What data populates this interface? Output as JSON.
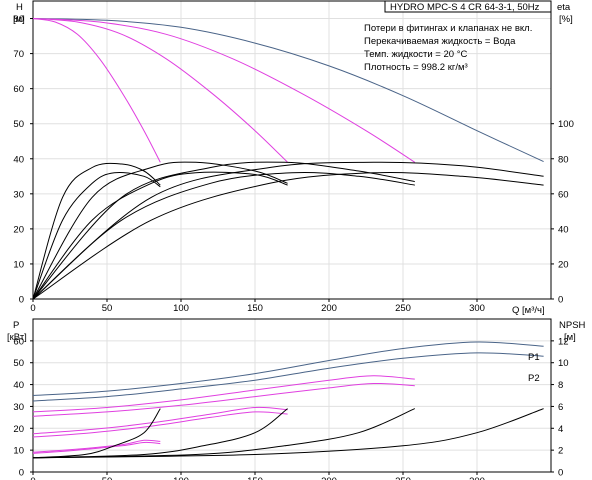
{
  "chart_data": [
    {
      "type": "line",
      "title": "HYDRO MPC-S 4 CR 64-3-1, 50Hz",
      "notes": [
        "Потери в фитингах и клапанах не вкл.",
        "Перекачиваемая жидкость = Вода",
        "Темп. жидкости = 20 °C",
        "Плотность = 998.2 кг/м³"
      ],
      "xlabel": "Q [м³/ч]",
      "xlim": [
        0,
        350
      ],
      "xticks": [
        0,
        50,
        100,
        150,
        200,
        250,
        300
      ],
      "ylabel_left": [
        "H",
        "[м]"
      ],
      "ylim_left": [
        0,
        85
      ],
      "yticks_left": [
        0,
        10,
        20,
        30,
        40,
        50,
        60,
        70,
        80
      ],
      "ylabel_right": [
        "eta",
        "[%]"
      ],
      "ylim_right": [
        0,
        170
      ],
      "yticks_right": [
        0,
        20,
        40,
        60,
        80,
        100
      ],
      "grid": true,
      "colors": {
        "head_max": "#4a6488",
        "head_reduced": "#e040e0",
        "efficiency": "#000000"
      },
      "series": [
        {
          "kind": "head",
          "color": "#4a6488",
          "x": [
            0,
            50,
            100,
            150,
            200,
            250,
            300,
            345
          ],
          "y": [
            80,
            79.5,
            77.5,
            73,
            66.5,
            58,
            48,
            39.2
          ]
        },
        {
          "kind": "head",
          "color": "#e040e0",
          "x": [
            0,
            45,
            90,
            135,
            180,
            225,
            258
          ],
          "y": [
            80,
            79,
            75.5,
            68.5,
            59,
            48,
            39
          ]
        },
        {
          "kind": "head",
          "color": "#e040e0",
          "x": [
            0,
            30,
            60,
            90,
            120,
            150,
            172
          ],
          "y": [
            80,
            79,
            75.5,
            68.5,
            59,
            48,
            39
          ]
        },
        {
          "kind": "head",
          "color": "#e040e0",
          "x": [
            0,
            15,
            30,
            45,
            60,
            75,
            86
          ],
          "y": [
            80,
            79,
            75.5,
            68.5,
            59,
            48,
            39
          ]
        },
        {
          "kind": "eta",
          "color": "#000000",
          "x": [
            0,
            20,
            40,
            60,
            75,
            86
          ],
          "y": [
            0,
            58,
            75,
            77,
            73,
            65
          ]
        },
        {
          "kind": "eta",
          "color": "#000000",
          "x": [
            0,
            20,
            40,
            55,
            75,
            86
          ],
          "y": [
            0,
            45,
            66,
            72,
            70,
            64
          ]
        },
        {
          "kind": "eta",
          "color": "#000000",
          "x": [
            0,
            40,
            80,
            110,
            150,
            172
          ],
          "y": [
            0,
            58,
            75,
            78,
            73,
            66
          ]
        },
        {
          "kind": "eta",
          "color": "#000000",
          "x": [
            0,
            40,
            80,
            110,
            150,
            172
          ],
          "y": [
            0,
            45,
            66,
            72,
            71,
            65
          ]
        },
        {
          "kind": "eta",
          "color": "#000000",
          "x": [
            0,
            60,
            120,
            170,
            220,
            258
          ],
          "y": [
            0,
            58,
            75,
            78,
            73,
            67
          ]
        },
        {
          "kind": "eta",
          "color": "#000000",
          "x": [
            0,
            60,
            120,
            175,
            220,
            258
          ],
          "y": [
            0,
            45,
            66,
            72,
            70,
            65
          ]
        },
        {
          "kind": "eta",
          "color": "#000000",
          "x": [
            0,
            80,
            160,
            230,
            290,
            345
          ],
          "y": [
            0,
            58,
            75,
            78,
            76,
            70
          ]
        },
        {
          "kind": "eta",
          "color": "#000000",
          "x": [
            0,
            80,
            160,
            230,
            290,
            345
          ],
          "y": [
            0,
            45,
            66,
            72,
            70,
            65
          ]
        }
      ]
    },
    {
      "type": "line",
      "xlim": [
        0,
        350
      ],
      "xticks": [
        0,
        50,
        100,
        150,
        200,
        250,
        300
      ],
      "ylabel_left": [
        "P",
        "[кВт]"
      ],
      "ylim_left": [
        0,
        70
      ],
      "yticks_left": [
        0,
        10,
        20,
        30,
        40,
        50,
        60
      ],
      "ylabel_right": [
        "NPSH",
        "[м]"
      ],
      "ylim_right": [
        0,
        14
      ],
      "yticks_right": [
        0,
        2,
        4,
        6,
        8,
        10,
        12
      ],
      "grid": true,
      "series": [
        {
          "kind": "power",
          "name": "P1",
          "color": "#4a6488",
          "x": [
            0,
            50,
            100,
            150,
            200,
            250,
            300,
            345
          ],
          "y": [
            35,
            37,
            40.5,
            45,
            51,
            56.5,
            59.5,
            57.5
          ]
        },
        {
          "kind": "power",
          "name": "P2",
          "color": "#4a6488",
          "x": [
            0,
            50,
            100,
            150,
            200,
            250,
            300,
            345
          ],
          "y": [
            32.5,
            34.5,
            38,
            42,
            47.5,
            52,
            54.5,
            53
          ]
        },
        {
          "kind": "power",
          "color": "#e040e0",
          "x": [
            0,
            50,
            100,
            150,
            200,
            230,
            258
          ],
          "y": [
            27.5,
            29.5,
            33,
            37.5,
            42,
            44,
            42.5
          ]
        },
        {
          "kind": "power",
          "color": "#e040e0",
          "x": [
            0,
            50,
            100,
            150,
            200,
            230,
            258
          ],
          "y": [
            25.5,
            27.5,
            30.5,
            34.5,
            38.5,
            40.5,
            39.5
          ]
        },
        {
          "kind": "power",
          "color": "#e040e0",
          "x": [
            0,
            40,
            80,
            120,
            150,
            172
          ],
          "y": [
            17.5,
            19.5,
            22.5,
            26.5,
            29.5,
            28.5
          ]
        },
        {
          "kind": "power",
          "color": "#e040e0",
          "x": [
            0,
            40,
            80,
            120,
            150,
            172
          ],
          "y": [
            16,
            18,
            21,
            25,
            27.5,
            26.5
          ]
        },
        {
          "kind": "power",
          "color": "#e040e0",
          "x": [
            0,
            30,
            60,
            75,
            86
          ],
          "y": [
            9,
            10.5,
            12.5,
            14.5,
            14
          ]
        },
        {
          "kind": "power",
          "color": "#e040e0",
          "x": [
            0,
            30,
            60,
            75,
            86
          ],
          "y": [
            8.5,
            10,
            12,
            13.5,
            13
          ]
        },
        {
          "kind": "npsh",
          "color": "#000000",
          "x": [
            0,
            150,
            250,
            300,
            345
          ],
          "y": [
            1.3,
            1.6,
            2.4,
            3.6,
            5.8
          ]
        },
        {
          "kind": "npsh",
          "color": "#000000",
          "x": [
            0,
            110,
            170,
            220,
            258
          ],
          "y": [
            1.3,
            1.6,
            2.4,
            3.6,
            5.8
          ]
        },
        {
          "kind": "npsh",
          "color": "#000000",
          "x": [
            0,
            75,
            115,
            150,
            172
          ],
          "y": [
            1.3,
            1.6,
            2.4,
            3.6,
            5.8
          ]
        },
        {
          "kind": "npsh",
          "color": "#000000",
          "x": [
            0,
            35,
            55,
            75,
            86
          ],
          "y": [
            1.3,
            1.6,
            2.4,
            3.6,
            5.8
          ]
        }
      ]
    }
  ]
}
